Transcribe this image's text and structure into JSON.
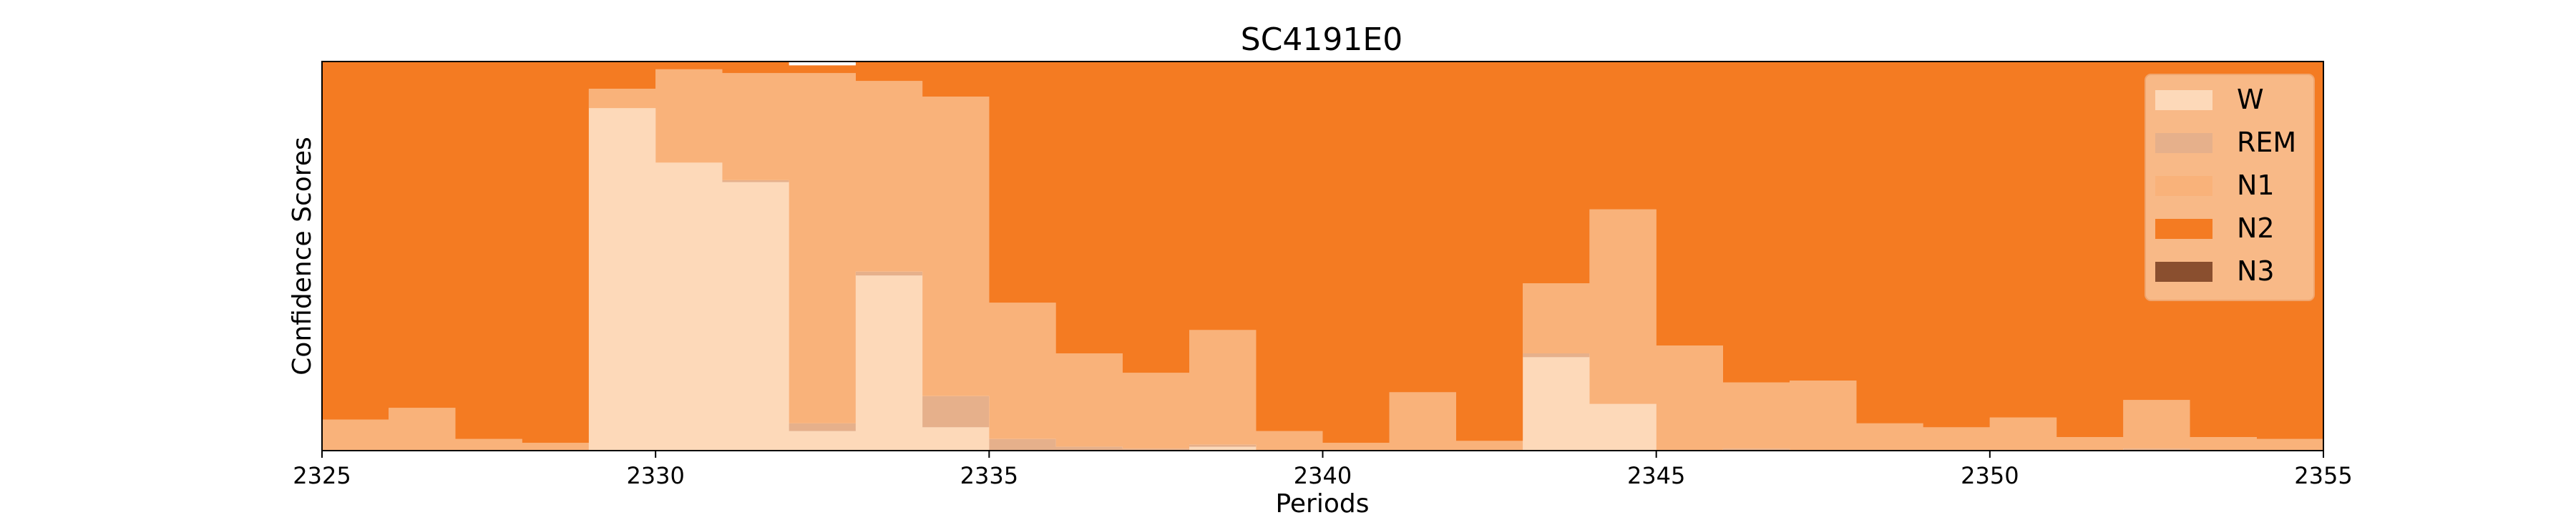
{
  "chart_data": {
    "type": "area",
    "title": "SC4191E0",
    "xlabel": "Periods",
    "ylabel": "Confidence Scores",
    "xlim": [
      2325,
      2355
    ],
    "ylim": [
      0,
      1
    ],
    "x_ticks": [
      "2325",
      "2330",
      "2335",
      "2340",
      "2345",
      "2350",
      "2355"
    ],
    "x_tick_values": [
      2325,
      2330,
      2335,
      2340,
      2345,
      2350,
      2355
    ],
    "grid": false,
    "legend_position": "top-right",
    "stacking": "step-stacked",
    "x": [
      2325,
      2326,
      2327,
      2328,
      2329,
      2330,
      2331,
      2332,
      2333,
      2334,
      2335,
      2336,
      2337,
      2338,
      2339,
      2340,
      2341,
      2342,
      2343,
      2344,
      2345,
      2346,
      2347,
      2348,
      2349,
      2350,
      2351,
      2352,
      2353,
      2354
    ],
    "series": [
      {
        "name": "W",
        "color": "#fdd9b9",
        "values": [
          0,
          0,
          0,
          0,
          0.88,
          0.74,
          0.69,
          0.05,
          0.45,
          0.06,
          0,
          0,
          0,
          0.01,
          0,
          0,
          0,
          0,
          0.24,
          0.12,
          0,
          0,
          0,
          0,
          0,
          0,
          0,
          0,
          0,
          0
        ]
      },
      {
        "name": "REM",
        "color": "#e6b08b",
        "values": [
          0,
          0,
          0,
          0,
          0,
          0,
          0.005,
          0.02,
          0.01,
          0.08,
          0.03,
          0.01,
          0.005,
          0.005,
          0,
          0,
          0,
          0,
          0.01,
          0,
          0,
          0.005,
          0,
          0,
          0,
          0,
          0,
          0.005,
          0,
          0
        ]
      },
      {
        "name": "N1",
        "color": "#f9b27a",
        "values": [
          0.08,
          0.11,
          0.03,
          0.02,
          0.05,
          0.24,
          0.275,
          0.9,
          0.49,
          0.77,
          0.35,
          0.24,
          0.195,
          0.295,
          0.05,
          0.02,
          0.15,
          0.025,
          0.18,
          0.5,
          0.27,
          0.17,
          0.18,
          0.07,
          0.06,
          0.085,
          0.035,
          0.125,
          0.035,
          0.03
        ]
      },
      {
        "name": "N2",
        "color": "#f47b22",
        "values": [
          0.92,
          0.89,
          0.97,
          0.98,
          0.07,
          0.02,
          0.03,
          0.02,
          0.05,
          0.09,
          0.62,
          0.75,
          0.8,
          0.69,
          0.95,
          0.98,
          0.85,
          0.975,
          0.57,
          0.38,
          0.73,
          0.825,
          0.82,
          0.93,
          0.94,
          0.915,
          0.965,
          0.87,
          0.965,
          0.97
        ]
      },
      {
        "name": "N3",
        "color": "#8a4f2f",
        "values": [
          0,
          0,
          0,
          0,
          0,
          0,
          0,
          0,
          0,
          0,
          0,
          0,
          0,
          0,
          0,
          0,
          0,
          0,
          0,
          0,
          0,
          0,
          0,
          0,
          0,
          0,
          0,
          0,
          0,
          0
        ]
      }
    ]
  }
}
